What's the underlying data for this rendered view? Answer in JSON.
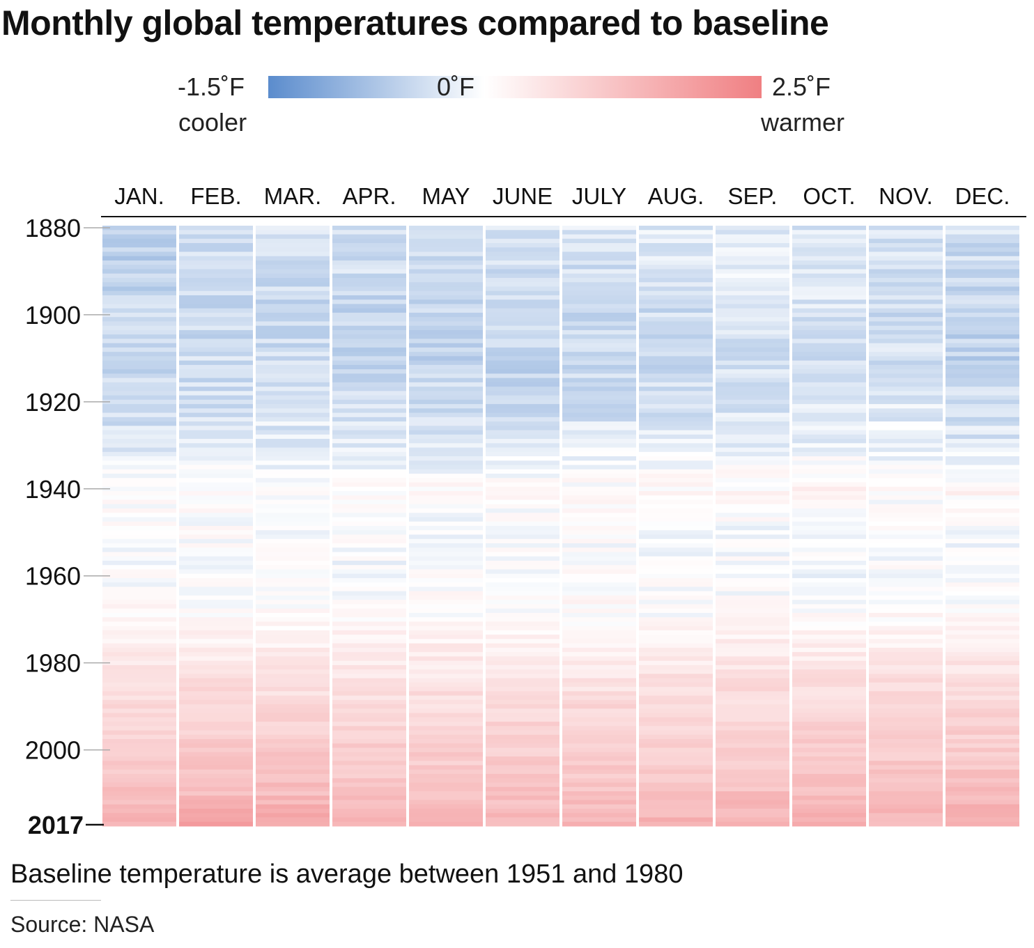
{
  "title": "Monthly global temperatures compared to baseline",
  "legend": {
    "min_label": "-1.5˚F",
    "mid_label": "0˚F",
    "max_label": "2.5˚F",
    "cool_label": "cooler",
    "warm_label": "warmer",
    "cold_color": "#5b8ccd",
    "neutral_color": "#ffffff",
    "warm_color": "#f07f82"
  },
  "note": "Baseline temperature is average between 1951 and 1980",
  "source": "Source: NASA",
  "chart_data": {
    "type": "heatmap",
    "title": "Monthly global temperatures compared to baseline",
    "columns": [
      "JAN.",
      "FEB.",
      "MAR.",
      "APR.",
      "MAY",
      "JUNE",
      "JULY",
      "AUG.",
      "SEP.",
      "OCT.",
      "NOV.",
      "DEC."
    ],
    "year_start": 1880,
    "year_end": 2017,
    "y_ticks": [
      "1880",
      "1900",
      "1920",
      "1940",
      "1960",
      "1980",
      "2000",
      "2017"
    ],
    "value_range": [
      -1.5,
      2.5
    ],
    "units": "°F relative to 1951–1980 average",
    "decade_anomalies": {
      "years": [
        "1880",
        "1890",
        "1900",
        "1910",
        "1920",
        "1930",
        "1940",
        "1950",
        "1960",
        "1970",
        "1980",
        "1990",
        "2000",
        "2010",
        "2017"
      ],
      "JAN.": [
        -0.55,
        -0.6,
        -0.5,
        -0.5,
        -0.45,
        -0.35,
        0.1,
        0.0,
        0.0,
        0.1,
        0.5,
        0.7,
        1.0,
        1.25,
        1.6
      ],
      "FEB.": [
        -0.5,
        -0.45,
        -0.5,
        -0.45,
        -0.4,
        -0.3,
        0.1,
        0.0,
        0.0,
        0.1,
        0.5,
        0.8,
        1.05,
        1.3,
        1.75
      ],
      "MAR.": [
        -0.35,
        -0.4,
        -0.55,
        -0.45,
        -0.35,
        -0.25,
        0.1,
        -0.05,
        -0.05,
        0.1,
        0.5,
        0.75,
        1.05,
        1.3,
        1.8
      ],
      "APR.": [
        -0.4,
        -0.4,
        -0.55,
        -0.5,
        -0.4,
        -0.3,
        0.1,
        -0.05,
        -0.05,
        0.1,
        0.45,
        0.7,
        0.95,
        1.2,
        1.6
      ],
      "MAY": [
        -0.4,
        -0.4,
        -0.55,
        -0.55,
        -0.45,
        -0.3,
        0.1,
        -0.1,
        0.0,
        0.1,
        0.45,
        0.7,
        0.95,
        1.2,
        1.5
      ],
      "JUNE": [
        -0.4,
        -0.45,
        -0.5,
        -0.55,
        -0.5,
        -0.3,
        0.05,
        -0.05,
        0.0,
        0.1,
        0.45,
        0.75,
        0.95,
        1.2,
        1.45
      ],
      "JULY": [
        -0.35,
        -0.4,
        -0.45,
        -0.5,
        -0.45,
        -0.25,
        0.1,
        0.0,
        0.05,
        0.1,
        0.45,
        0.75,
        0.95,
        1.2,
        1.45
      ],
      "AUG.": [
        -0.3,
        -0.35,
        -0.45,
        -0.5,
        -0.4,
        -0.25,
        0.15,
        -0.05,
        0.0,
        0.05,
        0.45,
        0.75,
        0.95,
        1.2,
        1.5
      ],
      "SEP.": [
        -0.3,
        -0.25,
        -0.4,
        -0.45,
        -0.35,
        -0.2,
        0.15,
        -0.05,
        -0.05,
        0.1,
        0.5,
        0.75,
        0.95,
        1.25,
        1.5
      ],
      "OCT.": [
        -0.3,
        -0.3,
        -0.35,
        -0.4,
        -0.3,
        -0.15,
        0.2,
        0.0,
        -0.05,
        0.1,
        0.5,
        0.75,
        1.0,
        1.3,
        1.55
      ],
      "NOV.": [
        -0.4,
        -0.4,
        -0.45,
        -0.4,
        -0.3,
        -0.15,
        0.1,
        -0.05,
        0.0,
        0.1,
        0.5,
        0.8,
        1.0,
        1.25,
        1.45
      ],
      "DEC.": [
        -0.4,
        -0.5,
        -0.55,
        -0.6,
        -0.45,
        -0.3,
        0.2,
        -0.05,
        0.0,
        0.1,
        0.5,
        0.8,
        1.0,
        1.3,
        1.6
      ]
    }
  }
}
